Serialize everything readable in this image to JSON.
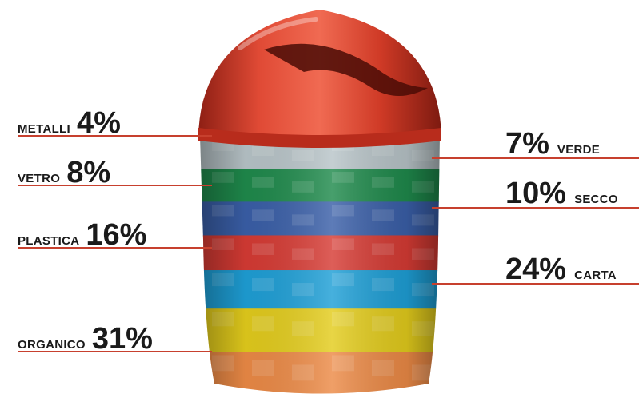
{
  "chart_data": {
    "type": "bar",
    "categories": [
      "METALLI",
      "VERDE",
      "VETRO",
      "SECCO",
      "PLASTICA",
      "CARTA",
      "ORGANICO"
    ],
    "values": [
      4,
      7,
      8,
      10,
      16,
      24,
      31
    ],
    "unit": "%",
    "bands_top_to_bottom": [
      {
        "name": "METALLI",
        "value": 4,
        "pct_label": "4%",
        "side": "left",
        "color": "#b8c4c8"
      },
      {
        "name": "VERDE",
        "value": 7,
        "pct_label": "7%",
        "side": "right",
        "color": "#1f8a4c"
      },
      {
        "name": "VETRO",
        "value": 8,
        "pct_label": "8%",
        "side": "left",
        "color": "#3a5fa8"
      },
      {
        "name": "SECCO",
        "value": 10,
        "pct_label": "10%",
        "side": "right",
        "color": "#d63b34"
      },
      {
        "name": "PLASTICA",
        "value": 16,
        "pct_label": "16%",
        "side": "left",
        "color": "#1e9fd6"
      },
      {
        "name": "CARTA",
        "value": 24,
        "pct_label": "24%",
        "side": "right",
        "color": "#e3cc1c"
      },
      {
        "name": "ORGANICO",
        "value": 31,
        "pct_label": "31%",
        "side": "left",
        "color": "#ec8a46"
      }
    ],
    "line_color": "#c7402e",
    "lid_color": "#d7402f"
  }
}
